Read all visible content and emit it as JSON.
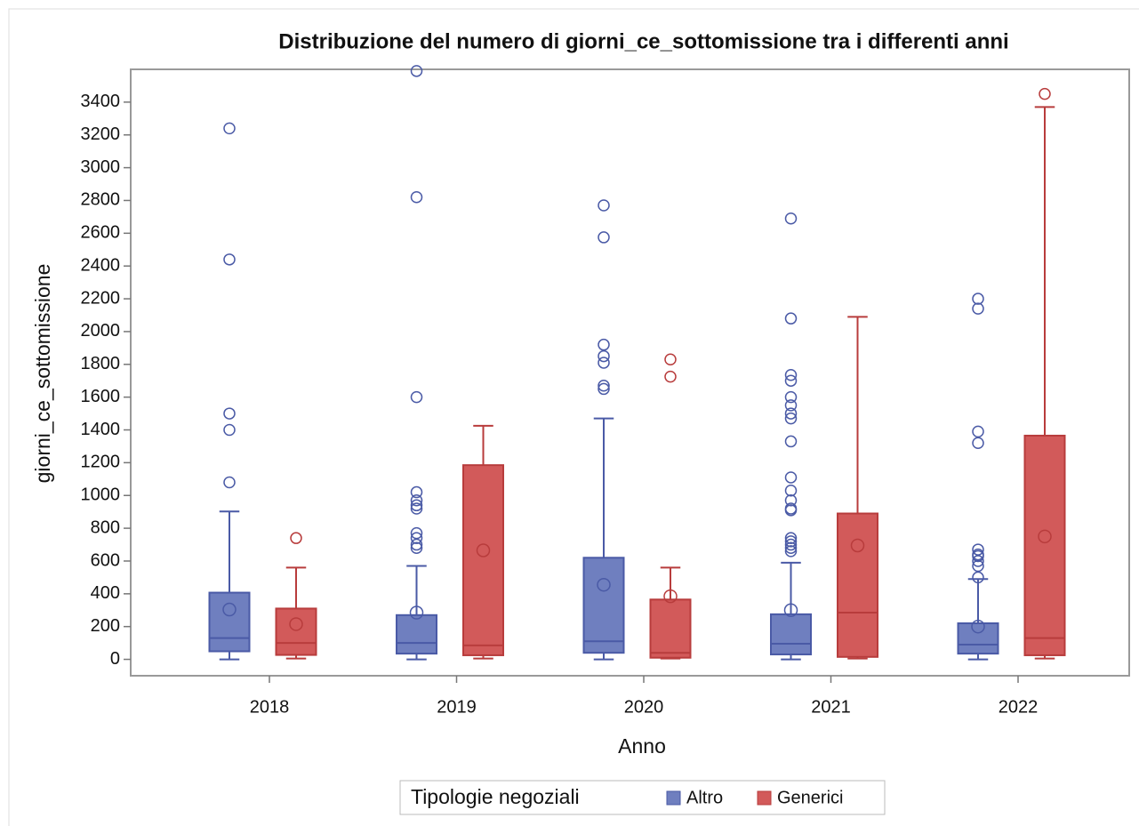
{
  "chart_data": {
    "type": "box",
    "title": "Distribuzione del numero di giorni_ce_sottomissione tra i differenti anni",
    "x_label": "Anno",
    "y_label": "giorni_ce_sottomissione",
    "legend_title": "Tipologie negoziali",
    "legend": "bottom",
    "categories": [
      "2018",
      "2019",
      "2020",
      "2021",
      "2022"
    ],
    "ylim": [
      -100,
      3600
    ],
    "yticks": [
      0,
      200,
      400,
      600,
      800,
      1000,
      1200,
      1400,
      1600,
      1800,
      2000,
      2200,
      2400,
      2600,
      2800,
      3000,
      3200,
      3400
    ],
    "series": [
      {
        "name": "Altro",
        "color": "#6f7fbf",
        "line_color": "#4a5aa6",
        "boxes": [
          {
            "min": 0,
            "q1": 49,
            "median": 130,
            "q3": 407,
            "max": 902,
            "mean": 304,
            "outliers": [
              1080,
              1400,
              1500,
              2440,
              3240
            ]
          },
          {
            "min": 0,
            "q1": 35,
            "median": 100,
            "q3": 270,
            "max": 570,
            "mean": 285,
            "outliers": [
              680,
              700,
              740,
              770,
              920,
              940,
              970,
              1020,
              1600,
              2820,
              3590
            ]
          },
          {
            "min": 0,
            "q1": 40,
            "median": 110,
            "q3": 620,
            "max": 1470,
            "mean": 455,
            "outliers": [
              1650,
              1670,
              1810,
              1850,
              1920,
              2575,
              2770
            ]
          },
          {
            "min": 0,
            "q1": 30,
            "median": 95,
            "q3": 275,
            "max": 590,
            "mean": 300,
            "outliers": [
              660,
              680,
              700,
              720,
              740,
              910,
              920,
              970,
              1030,
              1110,
              1330,
              1470,
              1500,
              1550,
              1600,
              1700,
              1735,
              2080,
              2690
            ]
          },
          {
            "min": 0,
            "q1": 35,
            "median": 90,
            "q3": 220,
            "max": 490,
            "mean": 200,
            "outliers": [
              500,
              570,
              600,
              630,
              640,
              670,
              1320,
              1390,
              2140,
              2200
            ]
          }
        ]
      },
      {
        "name": "Generici",
        "color": "#d25a5a",
        "line_color": "#b83c3c",
        "boxes": [
          {
            "min": 5,
            "q1": 27,
            "median": 100,
            "q3": 310,
            "max": 560,
            "mean": 215,
            "outliers": [
              740
            ]
          },
          {
            "min": 5,
            "q1": 25,
            "median": 85,
            "q3": 1185,
            "max": 1425,
            "mean": 665,
            "outliers": []
          },
          {
            "min": 5,
            "q1": 10,
            "median": 40,
            "q3": 365,
            "max": 560,
            "mean": 385,
            "outliers": [
              1725,
              1830
            ]
          },
          {
            "min": 5,
            "q1": 15,
            "median": 285,
            "q3": 890,
            "max": 2090,
            "mean": 695,
            "outliers": []
          },
          {
            "min": 5,
            "q1": 25,
            "median": 130,
            "q3": 1365,
            "max": 3370,
            "mean": 750,
            "outliers": [
              3450
            ]
          }
        ]
      }
    ]
  }
}
